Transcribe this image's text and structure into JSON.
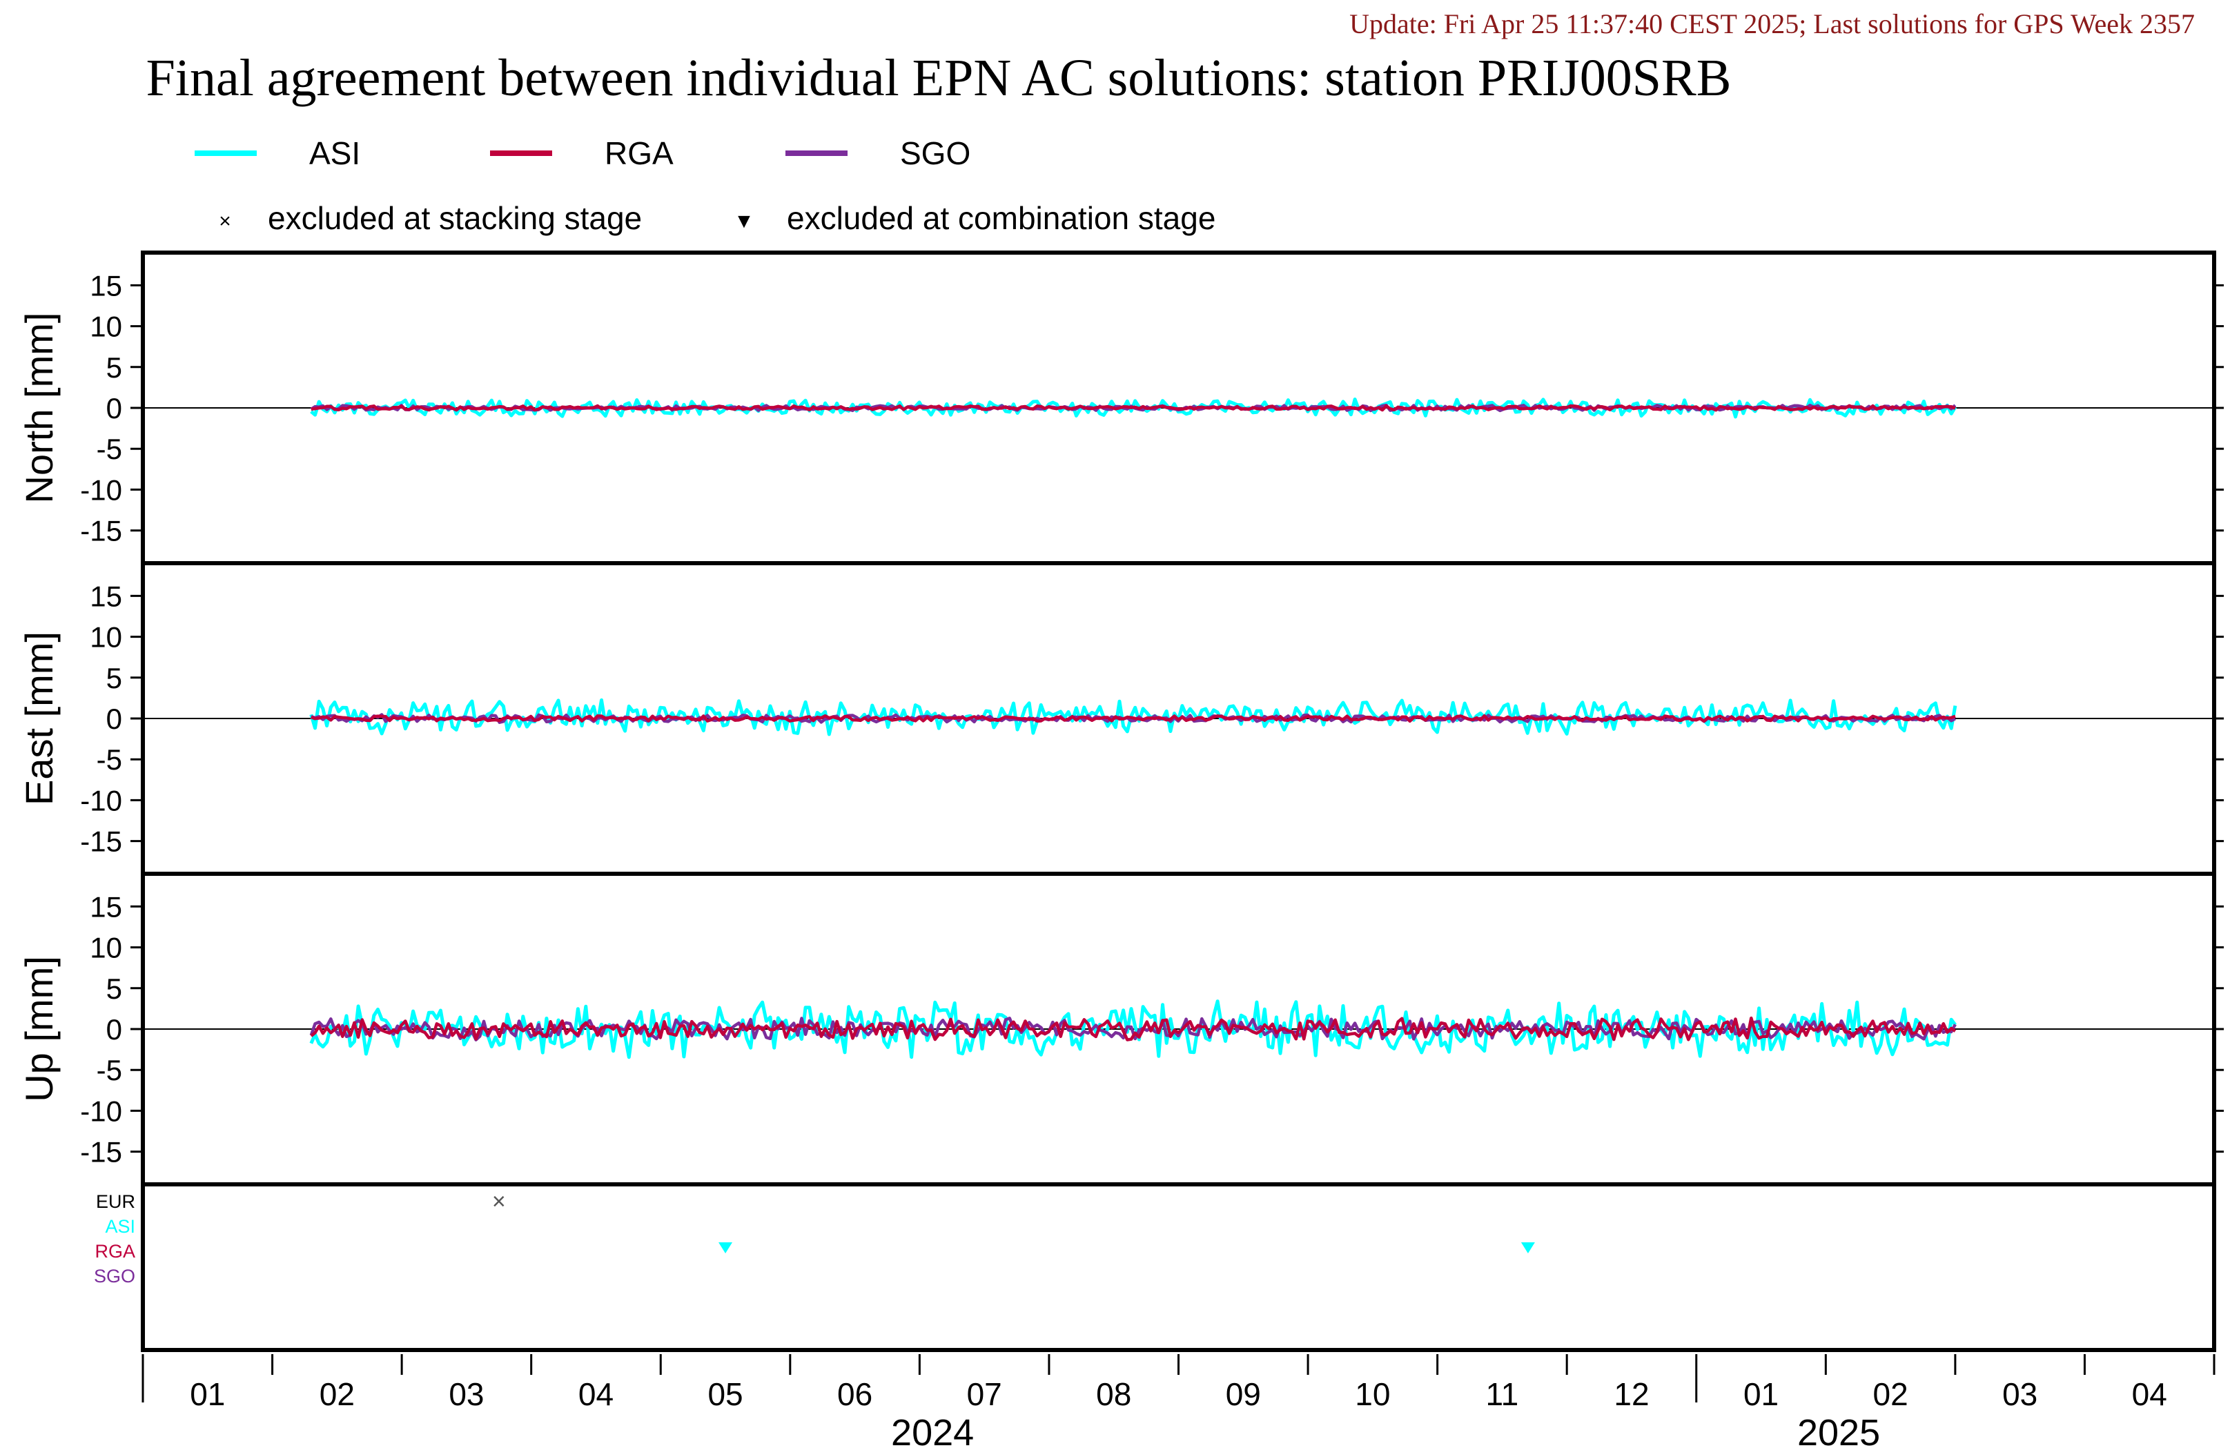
{
  "header": {
    "update_text": "Update: Fri Apr 25 11:37:40 CEST 2025; Last solutions for GPS Week 2357",
    "title": "Final agreement between individual EPN AC solutions: station PRIJ00SRB"
  },
  "legend": {
    "series": [
      {
        "name": "ASI",
        "color": "#00ffff"
      },
      {
        "name": "RGA",
        "color": "#c0003c"
      },
      {
        "name": "SGO",
        "color": "#7b2d9b"
      }
    ],
    "markers": [
      {
        "symbol": "×",
        "label": "excluded at stacking stage"
      },
      {
        "symbol": "▼",
        "label": "excluded at combination stage"
      }
    ]
  },
  "chart_data": {
    "type": "line",
    "x_range_months": [
      "2024-01",
      "2025-04"
    ],
    "x_tick_labels": [
      "01",
      "02",
      "03",
      "04",
      "05",
      "06",
      "07",
      "08",
      "09",
      "10",
      "11",
      "12",
      "01",
      "02",
      "03",
      "04"
    ],
    "year_labels": [
      {
        "year": "2024",
        "month_index": 6
      },
      {
        "year": "2025",
        "month_index": 13
      }
    ],
    "data_start_month": 1.3,
    "data_end_month": 14.0,
    "panels": [
      {
        "ylabel": "North [mm]",
        "ylim": [
          -19,
          19
        ],
        "yticks": [
          15,
          10,
          5,
          0,
          -5,
          -10,
          -15
        ],
        "series": [
          {
            "name": "ASI",
            "color": "#00ffff",
            "amplitude": 0.8
          },
          {
            "name": "SGO",
            "color": "#7b2d9b",
            "amplitude": 0.25
          },
          {
            "name": "RGA",
            "color": "#c0003c",
            "amplitude": 0.2
          }
        ]
      },
      {
        "ylabel": "East [mm]",
        "ylim": [
          -19,
          19
        ],
        "yticks": [
          15,
          10,
          5,
          0,
          -5,
          -10,
          -15
        ],
        "series": [
          {
            "name": "ASI",
            "color": "#00ffff",
            "amplitude": 1.4,
            "offset": 0.5
          },
          {
            "name": "SGO",
            "color": "#7b2d9b",
            "amplitude": 0.35
          },
          {
            "name": "RGA",
            "color": "#c0003c",
            "amplitude": 0.25
          }
        ]
      },
      {
        "ylabel": "Up [mm]",
        "ylim": [
          -19,
          19
        ],
        "yticks": [
          15,
          10,
          5,
          0,
          -5,
          -10,
          -15
        ],
        "series": [
          {
            "name": "ASI",
            "color": "#00ffff",
            "amplitude": 2.6
          },
          {
            "name": "SGO",
            "color": "#7b2d9b",
            "amplitude": 1.0
          },
          {
            "name": "RGA",
            "color": "#c0003c",
            "amplitude": 1.0
          }
        ]
      }
    ],
    "exclusions": {
      "rows": [
        {
          "name": "EUR",
          "color": "#000000"
        },
        {
          "name": "ASI",
          "color": "#00ffff"
        },
        {
          "name": "RGA",
          "color": "#c0003c"
        },
        {
          "name": "SGO",
          "color": "#7b2d9b"
        }
      ],
      "marks": [
        {
          "type": "stacking",
          "row": "EUR",
          "month": 2.75
        },
        {
          "type": "combination",
          "row": "ASI",
          "month": 4.5
        },
        {
          "type": "combination",
          "row": "ASI",
          "month": 10.7
        }
      ]
    }
  }
}
